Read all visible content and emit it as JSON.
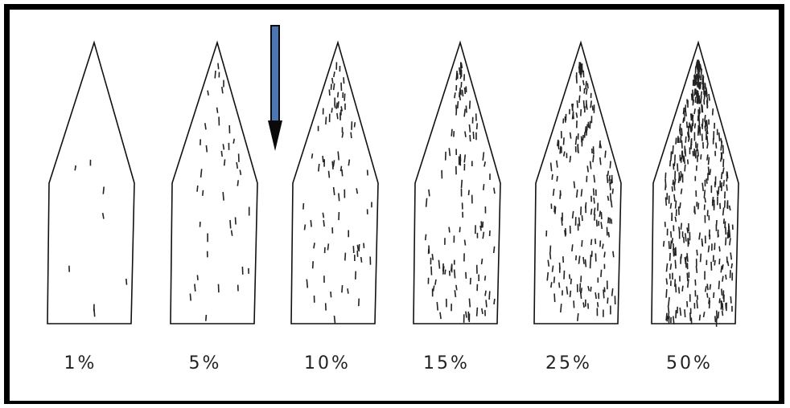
{
  "panels": [
    {
      "label": "1%",
      "density": 0.01
    },
    {
      "label": "5%",
      "density": 0.05
    },
    {
      "label": "10%",
      "density": 0.1
    },
    {
      "label": "15%",
      "density": 0.15
    },
    {
      "label": "25%",
      "density": 0.25
    },
    {
      "label": "50%",
      "density": 0.5
    }
  ],
  "colors": {
    "frame": "#000000",
    "outline": "#111111",
    "dash": "#222222",
    "arrow": "#4a76b4"
  },
  "icons": {
    "indicator": "down-arrow-icon"
  }
}
